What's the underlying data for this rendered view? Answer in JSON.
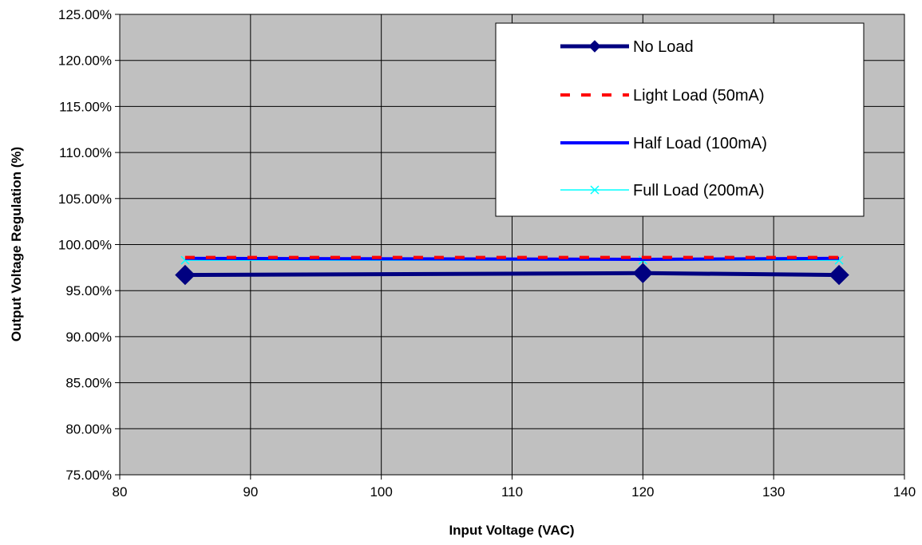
{
  "chart_data": {
    "type": "line",
    "xlabel": "Input Voltage (VAC)",
    "ylabel": "Output Voltage Regulation (%)",
    "xlim": [
      80,
      140
    ],
    "ylim": [
      75,
      125
    ],
    "x_ticks": [
      "80",
      "90",
      "100",
      "110",
      "120",
      "130",
      "140"
    ],
    "y_ticks": [
      "75.00%",
      "80.00%",
      "85.00%",
      "90.00%",
      "95.00%",
      "100.00%",
      "105.00%",
      "110.00%",
      "115.00%",
      "120.00%",
      "125.00%"
    ],
    "grid": true,
    "legend_position": "top-right",
    "plot_background": "#c0c0c0",
    "series": [
      {
        "name": "No Load",
        "color": "#000080",
        "marker": "diamond",
        "style": "solid-thick",
        "x": [
          85,
          120,
          135
        ],
        "y": [
          96.7,
          96.9,
          96.7
        ]
      },
      {
        "name": "Light Load (50mA)",
        "color": "#ff0000",
        "marker": "none",
        "style": "dashed",
        "x": [
          85,
          120,
          135
        ],
        "y": [
          98.6,
          98.6,
          98.6
        ]
      },
      {
        "name": "Half Load (100mA)",
        "color": "#0000ff",
        "marker": "none",
        "style": "solid",
        "x": [
          85,
          120,
          135
        ],
        "y": [
          98.5,
          98.4,
          98.5
        ]
      },
      {
        "name": "Full Load (200mA)",
        "color": "#00ffff",
        "marker": "x",
        "style": "solid-thin",
        "x": [
          85,
          120,
          135
        ],
        "y": [
          98.3,
          98.3,
          98.3
        ]
      }
    ]
  }
}
